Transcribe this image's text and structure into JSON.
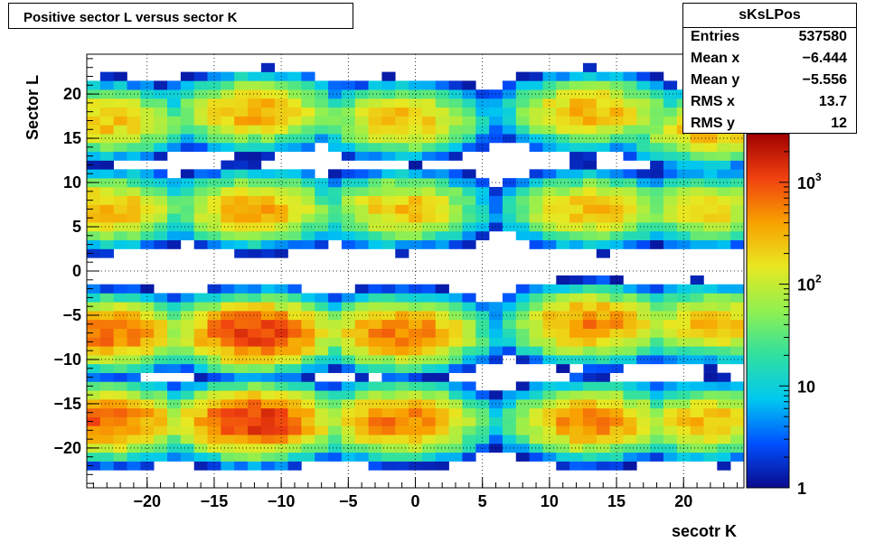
{
  "title": "Positive sector L versus sector K",
  "stats": {
    "name": "sKsLPos",
    "rows": [
      {
        "label": "Entries",
        "value": "537580"
      },
      {
        "label": "Mean x",
        "value": "−6.444"
      },
      {
        "label": "Mean y",
        "value": "−5.556"
      },
      {
        "label": "RMS x",
        "value": "13.7"
      },
      {
        "label": "RMS y",
        "value": "12"
      }
    ]
  },
  "chart_data": {
    "type": "heatmap",
    "title": "Positive sector L versus sector K",
    "xlabel": "secotr K",
    "ylabel": "Sector L",
    "xlim": [
      -24.5,
      24.5
    ],
    "ylim": [
      -24.5,
      24.5
    ],
    "x_ticks": [
      "−20",
      "−15",
      "−10",
      "−5",
      "0",
      "5",
      "10",
      "15",
      "20"
    ],
    "y_ticks": [
      "−20",
      "−15",
      "−10",
      "−5",
      "0",
      "5",
      "10",
      "15",
      "20"
    ],
    "grid": true,
    "z_scale": "log",
    "zlim": [
      1,
      3000
    ],
    "colorbar_labels": [
      {
        "base": "1",
        "exp": ""
      },
      {
        "base": "10",
        "exp": ""
      },
      {
        "base": "10",
        "exp": "2"
      },
      {
        "base": "10",
        "exp": "3"
      }
    ],
    "colormap": [
      "#0a0a8c",
      "#0050ff",
      "#00c8f0",
      "#30e0a0",
      "#90f050",
      "#e8e820",
      "#f8a000",
      "#f04010",
      "#a00000"
    ],
    "clusters": [
      {
        "x": -12,
        "y": -17,
        "peak": 1500
      },
      {
        "x": -12,
        "y": -7,
        "peak": 1400
      },
      {
        "x": -1,
        "y": -17,
        "peak": 700
      },
      {
        "x": -1,
        "y": -7,
        "peak": 700
      },
      {
        "x": -23,
        "y": -17,
        "peak": 900
      },
      {
        "x": -23,
        "y": -7,
        "peak": 800
      },
      {
        "x": -12,
        "y": 7,
        "peak": 400
      },
      {
        "x": -12,
        "y": 18,
        "peak": 400
      },
      {
        "x": -1,
        "y": 7,
        "peak": 300
      },
      {
        "x": -1,
        "y": 17,
        "peak": 300
      },
      {
        "x": -23,
        "y": 7,
        "peak": 350
      },
      {
        "x": -23,
        "y": 17,
        "peak": 300
      },
      {
        "x": 13,
        "y": -17,
        "peak": 600
      },
      {
        "x": 13,
        "y": -6,
        "peak": 600
      },
      {
        "x": 13,
        "y": 7,
        "peak": 300
      },
      {
        "x": 13,
        "y": 18,
        "peak": 350
      },
      {
        "x": 22,
        "y": -17,
        "peak": 300
      },
      {
        "x": 22,
        "y": -6,
        "peak": 300
      },
      {
        "x": 22,
        "y": 7,
        "peak": 200
      },
      {
        "x": 22,
        "y": 16,
        "peak": 300
      }
    ]
  }
}
